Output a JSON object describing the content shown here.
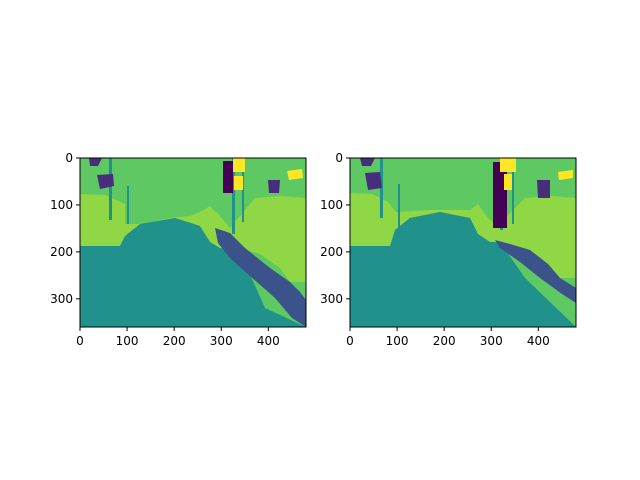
{
  "chart_data": [
    {
      "type": "heatmap",
      "title": "",
      "xlabel": "",
      "ylabel": "",
      "xlim": [
        0,
        480
      ],
      "ylim": [
        360,
        0
      ],
      "x_ticks": [
        0,
        100,
        200,
        300,
        400
      ],
      "y_ticks": [
        0,
        100,
        200,
        300
      ],
      "grid": false,
      "colormap": [
        "#440154",
        "#3b528b",
        "#21918c",
        "#5ec962",
        "#8fd744",
        "#fde725"
      ]
    },
    {
      "type": "heatmap",
      "title": "",
      "xlabel": "",
      "ylabel": "",
      "xlim": [
        0,
        480
      ],
      "ylim": [
        360,
        0
      ],
      "x_ticks": [
        0,
        100,
        200,
        300,
        400
      ],
      "y_ticks": [
        0,
        100,
        200,
        300
      ],
      "grid": false,
      "colormap": [
        "#440154",
        "#3b528b",
        "#21918c",
        "#5ec962",
        "#8fd744",
        "#fde725"
      ]
    }
  ]
}
